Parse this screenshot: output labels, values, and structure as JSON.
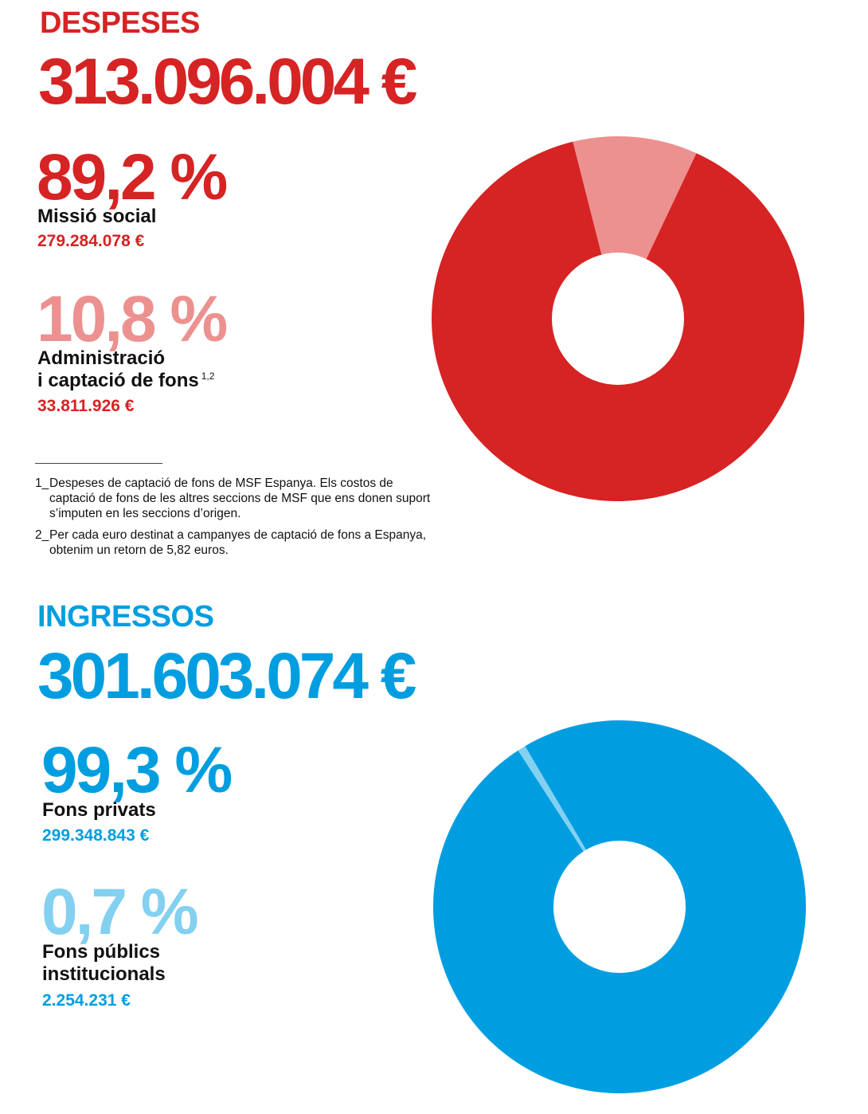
{
  "expenses": {
    "heading": "DESPESES",
    "total": "313.096.004 €",
    "items": [
      {
        "percent": "89,2 %",
        "label": "Missió social",
        "label2": "",
        "amount": "279.284.078 €"
      },
      {
        "percent": "10,8 %",
        "label": "Administració",
        "label2": "i captació de fons",
        "note_ref": "1,2",
        "amount": "33.811.926 €"
      }
    ]
  },
  "income": {
    "heading": "INGRESSOS",
    "total": "301.603.074 €",
    "items": [
      {
        "percent": "99,3 %",
        "label": "Fons privats",
        "label2": "",
        "amount": "299.348.843 €"
      },
      {
        "percent": "0,7 %",
        "label": "Fons públics",
        "label2": "institucionals",
        "amount": "2.254.231 €"
      }
    ]
  },
  "footnotes": [
    {
      "num": "1_",
      "text": "Despeses de captació de fons de MSF Espanya. Els costos de captació de fons de les altres seccions de MSF que ens donen suport s’imputen en les seccions d’origen."
    },
    {
      "num": "2_",
      "text": "Per cada euro destinat a campanyes de captació de fons a Espanya, obtenim un retorn de 5,82 euros."
    }
  ],
  "chart_data": [
    {
      "type": "pie",
      "categories": [
        "Missió social",
        "Administració i captació de fons"
      ],
      "values": [
        89.2,
        10.8
      ],
      "colors": [
        "#d62323",
        "#ec918f"
      ]
    },
    {
      "type": "pie",
      "categories": [
        "Fons privats",
        "Fons públics institucionals"
      ],
      "values": [
        99.3,
        0.7
      ],
      "colors": [
        "#009ee0",
        "#83d0f1"
      ]
    }
  ]
}
